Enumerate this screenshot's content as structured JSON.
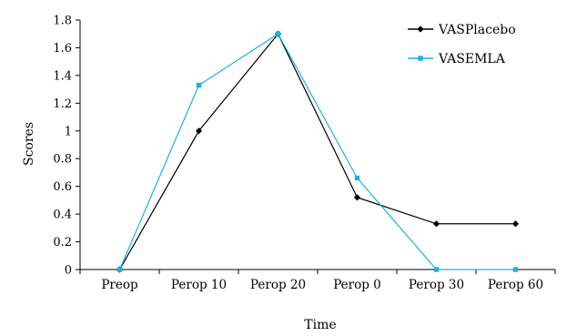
{
  "chart_data": {
    "type": "line",
    "categories": [
      "Preop",
      "Perop 10",
      "Perop 20",
      "Perop 0",
      "Perop 30",
      "Perop 60"
    ],
    "series": [
      {
        "name": "VASPlacebo",
        "values": [
          0,
          1.0,
          1.7,
          0.52,
          0.33,
          0.33
        ],
        "color": "#000000",
        "marker": "diamond"
      },
      {
        "name": "VASEMLA",
        "values": [
          0,
          1.33,
          1.7,
          0.66,
          0,
          0
        ],
        "color": "#1ab2e0",
        "marker": "square"
      }
    ],
    "yticks": [
      "0",
      "0.2",
      "0.4",
      "0.6",
      "0.8",
      "1",
      "1.2",
      "1.4",
      "1.6",
      "1.8"
    ],
    "ylim": [
      0,
      1.8
    ],
    "xlabel": "Time",
    "ylabel": "Scores",
    "grid": false,
    "legend_position": "top-right"
  }
}
